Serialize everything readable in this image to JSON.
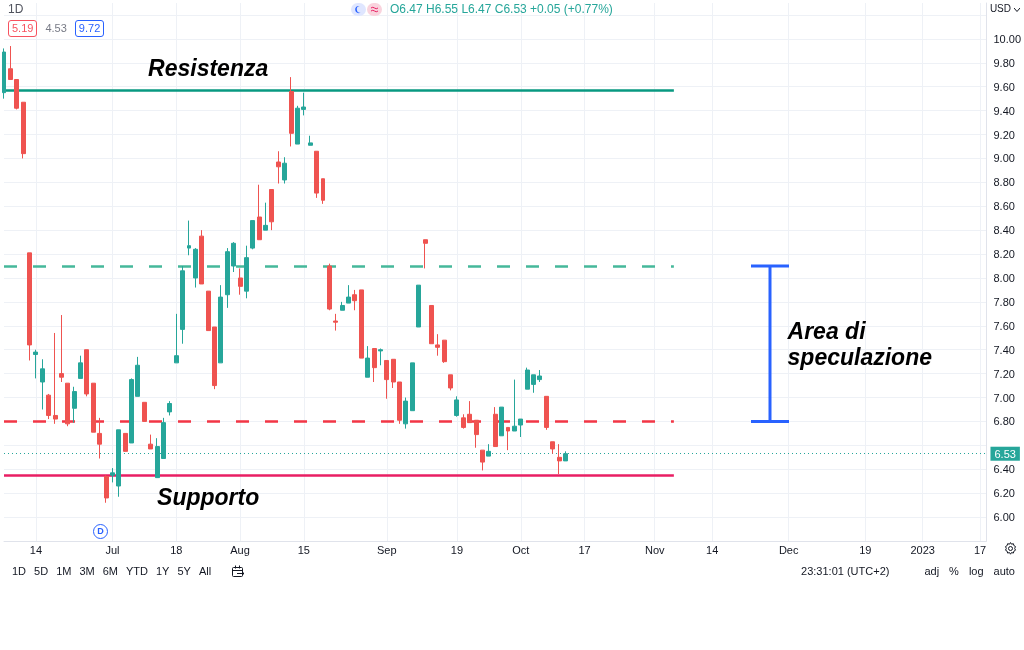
{
  "chart_data": {
    "type": "candlestick",
    "title": "1D",
    "subtitle": "O6.47 H6.55 L6.47 C6.53 +0.05 (+0.77%)",
    "ylabel": "USD",
    "categories": [
      null,
      null,
      null,
      null,
      null,
      "14",
      null,
      null,
      null,
      null,
      null,
      null,
      null,
      null,
      null,
      null,
      null,
      "Jul",
      null,
      null,
      null,
      null,
      null,
      null,
      null,
      null,
      null,
      "18",
      null,
      null,
      null,
      null,
      null,
      null,
      null,
      null,
      null,
      "Aug",
      null,
      null,
      null,
      null,
      null,
      null,
      null,
      null,
      null,
      "15",
      null,
      null,
      null,
      null,
      null,
      null,
      null,
      null,
      null,
      null,
      null,
      null,
      "Sep",
      null,
      null,
      null,
      null,
      null,
      null,
      null,
      null,
      null,
      null,
      "19",
      null,
      null,
      null,
      null,
      null,
      null,
      null,
      null,
      null,
      "Oct",
      null,
      null,
      null,
      null,
      null,
      null,
      null,
      null,
      null,
      "17",
      null,
      null,
      null,
      null,
      null,
      null,
      null,
      null,
      null,
      null,
      "Nov",
      null,
      null,
      null,
      null,
      null,
      null,
      null,
      null,
      "14",
      null,
      null,
      null,
      null,
      null,
      null,
      null,
      null,
      null,
      null,
      null,
      "Dec",
      null,
      null,
      null,
      null,
      null,
      null,
      null,
      null,
      null,
      null,
      null,
      "19",
      null,
      null,
      null,
      null,
      null,
      null,
      null,
      null,
      "2023",
      null,
      null,
      null,
      null,
      null,
      null,
      null,
      null,
      "17",
      null
    ],
    "ohlc": [
      [
        9.55,
        9.92,
        9.5,
        9.89
      ],
      [
        9.75,
        9.94,
        9.66,
        9.66
      ],
      [
        9.66,
        9.66,
        9.41,
        9.42
      ],
      [
        9.47,
        9.47,
        9.0,
        9.04
      ],
      [
        8.21,
        8.21,
        7.31,
        7.44
      ],
      [
        7.36,
        7.4,
        7.16,
        7.38
      ],
      [
        7.13,
        7.32,
        6.9,
        7.24
      ],
      [
        7.02,
        7.03,
        6.82,
        6.85
      ],
      [
        6.85,
        7.54,
        6.78,
        6.82
      ],
      [
        7.2,
        7.69,
        7.13,
        7.17
      ],
      [
        7.12,
        7.12,
        6.76,
        6.78
      ],
      [
        6.91,
        7.09,
        6.79,
        7.05
      ],
      [
        7.16,
        7.35,
        7.16,
        7.29
      ],
      [
        7.4,
        7.4,
        7.01,
        7.03
      ],
      [
        7.12,
        7.12,
        6.71,
        6.71
      ],
      [
        6.7,
        6.83,
        6.49,
        6.61
      ],
      [
        6.34,
        6.35,
        6.12,
        6.16
      ],
      [
        6.35,
        6.41,
        6.29,
        6.37
      ],
      [
        6.26,
        6.73,
        6.17,
        6.73
      ],
      [
        6.7,
        6.7,
        6.55,
        6.55
      ],
      [
        6.62,
        7.16,
        6.62,
        7.15
      ],
      [
        7.01,
        7.34,
        7.01,
        7.27
      ],
      [
        6.96,
        6.96,
        6.8,
        6.8
      ],
      [
        6.61,
        6.69,
        6.57,
        6.57
      ],
      [
        6.33,
        6.66,
        6.33,
        6.59
      ],
      [
        6.49,
        6.83,
        6.49,
        6.79
      ],
      [
        6.88,
        6.97,
        6.85,
        6.95
      ],
      [
        7.29,
        7.7,
        7.29,
        7.35
      ],
      [
        7.57,
        8.1,
        7.45,
        8.06
      ],
      [
        8.25,
        8.48,
        8.19,
        8.27
      ],
      [
        8.0,
        8.25,
        7.92,
        8.24
      ],
      [
        8.35,
        8.4,
        7.95,
        7.95
      ],
      [
        7.89,
        7.89,
        7.56,
        7.56
      ],
      [
        7.59,
        7.59,
        7.07,
        7.1
      ],
      [
        7.29,
        7.94,
        7.29,
        7.84
      ],
      [
        7.86,
        8.25,
        7.75,
        8.22
      ],
      [
        8.1,
        8.3,
        8.05,
        8.29
      ],
      [
        8.0,
        8.08,
        7.86,
        7.93
      ],
      [
        7.89,
        8.27,
        7.83,
        8.17
      ],
      [
        8.25,
        8.48,
        8.24,
        8.48
      ],
      [
        8.51,
        8.78,
        8.32,
        8.32
      ],
      [
        8.4,
        8.63,
        8.4,
        8.44
      ],
      [
        8.74,
        8.74,
        8.4,
        8.47
      ],
      [
        8.97,
        9.06,
        8.79,
        8.93
      ],
      [
        8.82,
        9.01,
        8.79,
        8.96
      ],
      [
        9.56,
        9.68,
        9.1,
        9.21
      ],
      [
        9.12,
        9.44,
        9.12,
        9.42
      ],
      [
        9.41,
        9.55,
        9.36,
        9.43
      ],
      [
        9.11,
        9.19,
        9.11,
        9.13
      ],
      [
        9.06,
        9.06,
        8.67,
        8.71
      ],
      [
        8.83,
        8.83,
        8.62,
        8.65
      ],
      [
        8.1,
        8.12,
        7.73,
        7.74
      ],
      [
        7.64,
        7.7,
        7.56,
        7.63
      ],
      [
        7.73,
        7.8,
        7.73,
        7.77
      ],
      [
        7.79,
        7.94,
        7.79,
        7.84
      ],
      [
        7.86,
        7.9,
        7.73,
        7.81
      ],
      [
        7.9,
        7.9,
        7.33,
        7.33
      ],
      [
        7.17,
        7.43,
        7.17,
        7.33
      ],
      [
        7.41,
        7.41,
        7.13,
        7.25
      ],
      [
        7.39,
        7.41,
        7.27,
        7.4
      ],
      [
        7.31,
        7.31,
        6.99,
        7.15
      ],
      [
        7.32,
        7.32,
        7.08,
        7.13
      ],
      [
        7.13,
        7.13,
        6.78,
        6.81
      ],
      [
        6.78,
        7.0,
        6.74,
        6.97
      ],
      [
        6.89,
        7.29,
        6.89,
        7.29
      ],
      [
        7.59,
        7.94,
        7.59,
        7.94
      ],
      [
        8.32,
        8.32,
        8.08,
        8.29
      ],
      [
        7.77,
        7.77,
        7.45,
        7.45
      ],
      [
        7.44,
        7.53,
        7.35,
        7.42
      ],
      [
        7.48,
        7.48,
        7.29,
        7.3
      ],
      [
        7.19,
        7.19,
        7.06,
        7.08
      ],
      [
        6.85,
        7.01,
        6.84,
        6.98
      ],
      [
        6.83,
        6.86,
        6.74,
        6.75
      ],
      [
        6.86,
        6.97,
        6.79,
        6.79
      ],
      [
        6.81,
        6.81,
        6.58,
        6.69
      ],
      [
        6.56,
        6.56,
        6.39,
        6.46
      ],
      [
        6.51,
        6.61,
        6.51,
        6.55
      ],
      [
        6.86,
        6.92,
        6.59,
        6.59
      ],
      [
        6.68,
        6.92,
        6.68,
        6.92
      ],
      [
        6.75,
        6.75,
        6.56,
        6.72
      ],
      [
        6.72,
        7.15,
        6.72,
        6.76
      ],
      [
        6.77,
        6.82,
        6.67,
        6.82
      ],
      [
        7.07,
        7.25,
        7.07,
        7.23
      ],
      [
        7.11,
        7.19,
        7.04,
        7.19
      ],
      [
        7.15,
        7.23,
        7.13,
        7.18
      ],
      [
        7.01,
        7.01,
        6.73,
        6.75
      ],
      [
        6.63,
        6.63,
        6.53,
        6.57
      ],
      [
        6.5,
        6.61,
        6.36,
        6.47
      ],
      [
        6.47,
        6.55,
        6.47,
        6.53
      ],
      null,
      null,
      null,
      null,
      null,
      null,
      null,
      null,
      null,
      null,
      null,
      null,
      null,
      null,
      null,
      null,
      null,
      null,
      null,
      null,
      null,
      null,
      null,
      null,
      null,
      null,
      null,
      null,
      null,
      null,
      null,
      null,
      null,
      null,
      null,
      null,
      null,
      null,
      null,
      null,
      null,
      null,
      null,
      null,
      null,
      null,
      null,
      null,
      null,
      null,
      null,
      null,
      null,
      null,
      null,
      null,
      null,
      null,
      null,
      null,
      null,
      null,
      null,
      null,
      null,
      null
    ],
    "colors": [
      "#26a69a",
      "#ef5350",
      "#ef5350",
      "#ef5350",
      "#ef5350",
      "#26a69a",
      "#26a69a",
      "#ef5350",
      "#ef5350",
      "#ef5350",
      "#ef5350",
      "#26a69a",
      "#26a69a",
      "#ef5350",
      "#ef5350",
      "#ef5350",
      "#ef5350",
      "#26a69a",
      "#26a69a",
      "#ef5350",
      "#26a69a",
      "#26a69a",
      "#ef5350",
      "#ef5350",
      "#26a69a",
      "#26a69a",
      "#26a69a",
      "#26a69a",
      "#26a69a",
      "#26a69a",
      "#26a69a",
      "#ef5350",
      "#ef5350",
      "#ef5350",
      "#26a69a",
      "#26a69a",
      "#26a69a",
      "#ef5350",
      "#26a69a",
      "#26a69a",
      "#ef5350",
      "#26a69a",
      "#ef5350",
      "#ef5350",
      "#26a69a",
      "#ef5350",
      "#26a69a",
      "#26a69a",
      "#26a69a",
      "#ef5350",
      "#ef5350",
      "#ef5350",
      "#ef5350",
      "#26a69a",
      "#26a69a",
      "#ef5350",
      "#ef5350",
      "#26a69a",
      "#ef5350",
      "#26a69a",
      "#ef5350",
      "#ef5350",
      "#ef5350",
      "#26a69a",
      "#26a69a",
      "#26a69a",
      "#ef5350",
      "#ef5350",
      "#ef5350",
      "#ef5350",
      "#ef5350",
      "#26a69a",
      "#ef5350",
      "#ef5350",
      "#ef5350",
      "#ef5350",
      "#26a69a",
      "#ef5350",
      "#26a69a",
      "#ef5350",
      "#26a69a",
      "#26a69a",
      "#26a69a",
      "#26a69a",
      "#26a69a",
      "#ef5350",
      "#ef5350",
      "#ef5350",
      "#26a69a",
      null,
      null,
      null,
      null,
      null,
      null,
      null,
      null,
      null,
      null,
      null,
      null,
      null,
      null,
      null,
      null,
      null,
      null,
      null,
      null,
      null,
      null,
      null,
      null,
      null,
      null,
      null,
      null,
      null,
      null,
      null,
      null,
      null,
      null,
      null,
      null,
      null,
      null,
      null,
      null,
      null,
      null,
      null,
      null,
      null,
      null,
      null,
      null,
      null,
      null,
      null,
      null,
      null,
      null,
      null,
      null,
      null,
      null,
      null,
      null,
      null,
      null,
      null,
      null,
      null,
      null
    ],
    "ylim": [
      5.8,
      10.3
    ],
    "yticks": [
      {
        "value": 6,
        "label": "6.00"
      },
      {
        "value": 6.2,
        "label": "6.20"
      },
      {
        "value": 6.4,
        "label": "6.40"
      },
      {
        "value": 6.6,
        "label": null
      },
      {
        "value": 6.8,
        "label": "6.80"
      },
      {
        "value": 7,
        "label": "7.00"
      },
      {
        "value": 7.2,
        "label": "7.20"
      },
      {
        "value": 7.4,
        "label": "7.40"
      },
      {
        "value": 7.6,
        "label": "7.60"
      },
      {
        "value": 7.8,
        "label": "7.80"
      },
      {
        "value": 8,
        "label": "8.00"
      },
      {
        "value": 8.2,
        "label": "8.20"
      },
      {
        "value": 8.4,
        "label": "8.40"
      },
      {
        "value": 8.6,
        "label": "8.60"
      },
      {
        "value": 8.8,
        "label": "8.80"
      },
      {
        "value": 9,
        "label": "9.00"
      },
      {
        "value": 9.2,
        "label": "9.20"
      },
      {
        "value": 9.4,
        "label": "9.40"
      },
      {
        "value": 9.6,
        "label": "9.60"
      },
      {
        "value": 9.8,
        "label": "9.80"
      },
      {
        "value": 10,
        "label": "10.00"
      },
      {
        "value": 10.2,
        "label": null
      }
    ],
    "grid": true,
    "ref_lines": [
      {
        "axis": "y",
        "value": 9.57,
        "label": "Resistenza",
        "color": "#089981"
      },
      {
        "axis": "y",
        "value": 8.1,
        "color": "#45b89a",
        "line_style": "dashed"
      },
      {
        "axis": "y",
        "value": 6.8,
        "color": "#f23645",
        "line_style": "dashed"
      },
      {
        "axis": "y",
        "value": 6.35,
        "label": "Supporto",
        "color": "#e91e63"
      },
      {
        "axis": "y",
        "value": 6.53,
        "label": "6.53",
        "color": "#26a69a",
        "line_style": "dotted"
      }
    ],
    "annotations": [
      "Area di speculazione",
      "5.19",
      "4.53",
      "9.72",
      "D",
      "1D",
      "5D",
      "1M",
      "3M",
      "6M",
      "YTD",
      "1Y",
      "5Y",
      "All",
      "23:31:01 (UTC+2)",
      "adj",
      "%",
      "log",
      "auto"
    ]
  }
}
